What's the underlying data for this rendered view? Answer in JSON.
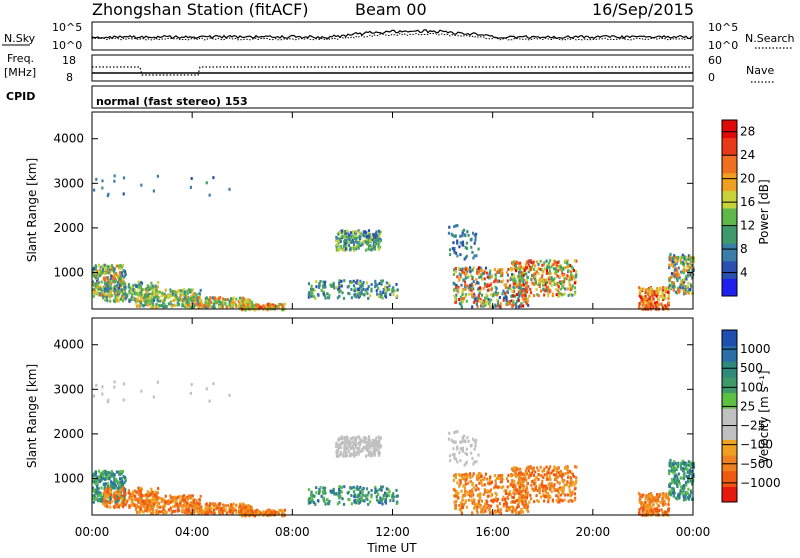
{
  "header": {
    "title": "Zhongshan Station (fitACF)",
    "beam": "Beam 00",
    "date": "16/Sep/2015"
  },
  "top_panels": {
    "nsky_label": "N.Sky",
    "nsky_ticks": [
      "10^5",
      "10^0"
    ],
    "nsearch_label": "N.Search",
    "nsearch_ticks": [
      "10^5",
      "10^0"
    ],
    "freq_label_1": "Freq.",
    "freq_label_2": "[MHz]",
    "freq_ticks": [
      "18",
      "8"
    ],
    "nave_label": "Nave",
    "nave_ticks": [
      "60",
      "0"
    ],
    "cpid_label": "CPID",
    "cpid_text": "normal (fast stereo) 153"
  },
  "colors": {
    "power_scale": [
      "#1f1ff0",
      "#2b4fb0",
      "#3a7ea8",
      "#3e9a6a",
      "#5fb84a",
      "#c8d23a",
      "#f0a020",
      "#f07020",
      "#e83a18",
      "#e00a0a"
    ],
    "velocity_scale": [
      "#1f4fb0",
      "#2b6ea8",
      "#2f8a7a",
      "#3e9a6a",
      "#5cc040",
      "#c0c0c0",
      "#c0c0c0",
      "#f0a020",
      "#f08020",
      "#f05a10",
      "#e81a10"
    ]
  },
  "chart_data": [
    {
      "type": "heatmap",
      "name": "power",
      "ylabel": "Slant Range [km]",
      "xlabel": "Time UT",
      "x_ticks": [
        "00:00",
        "04:00",
        "08:00",
        "12:00",
        "16:00",
        "20:00",
        "00:00"
      ],
      "y_ticks": [
        "1000",
        "2000",
        "3000",
        "4000"
      ],
      "ylim": [
        180,
        4600
      ],
      "xlim_hours": [
        0,
        24
      ],
      "colorbar_label": "Power [dB]",
      "colorbar_ticks": [
        "4",
        "8",
        "12",
        "16",
        "20",
        "24",
        "28"
      ],
      "colorbar_range": [
        0,
        30
      ]
    },
    {
      "type": "heatmap",
      "name": "velocity",
      "ylabel": "Slant Range [km]",
      "xlabel": "Time UT",
      "x_ticks": [
        "00:00",
        "04:00",
        "08:00",
        "12:00",
        "16:00",
        "20:00",
        "00:00"
      ],
      "y_ticks": [
        "1000",
        "2000",
        "3000",
        "4000"
      ],
      "ylim": [
        180,
        4600
      ],
      "xlim_hours": [
        0,
        24
      ],
      "colorbar_label": "Velocity [m s⁻¹]",
      "colorbar_ticks": [
        "1000",
        "500",
        "100",
        "25",
        "−25",
        "−100",
        "−500",
        "−1000"
      ]
    }
  ],
  "time_axis_label": "Time UT"
}
